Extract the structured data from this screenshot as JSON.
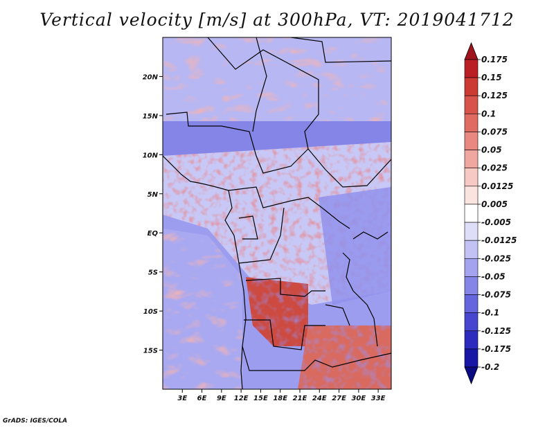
{
  "title": "Vertical velocity [m/s] at 300hPa, VT: 2019041712",
  "credit": "GrADS: IGES/COLA",
  "map": {
    "lon_range": [
      0,
      35
    ],
    "lat_range": [
      -20,
      25
    ],
    "lon_ticks": [
      {
        "value": 3,
        "label": "3E"
      },
      {
        "value": 6,
        "label": "6E"
      },
      {
        "value": 9,
        "label": "9E"
      },
      {
        "value": 12,
        "label": "12E"
      },
      {
        "value": 15,
        "label": "15E"
      },
      {
        "value": 18,
        "label": "18E"
      },
      {
        "value": 21,
        "label": "21E"
      },
      {
        "value": 24,
        "label": "24E"
      },
      {
        "value": 27,
        "label": "27E"
      },
      {
        "value": 30,
        "label": "30E"
      },
      {
        "value": 33,
        "label": "33E"
      }
    ],
    "lat_ticks": [
      {
        "value": 20,
        "label": "20N"
      },
      {
        "value": 15,
        "label": "15N"
      },
      {
        "value": 10,
        "label": "10N"
      },
      {
        "value": 5,
        "label": "5N"
      },
      {
        "value": 0,
        "label": "EQ"
      },
      {
        "value": -5,
        "label": "5S"
      },
      {
        "value": -10,
        "label": "10S"
      },
      {
        "value": -15,
        "label": "15S"
      }
    ]
  },
  "colorbar": {
    "labels": [
      "0.175",
      "0.15",
      "0.125",
      "0.1",
      "0.075",
      "0.05",
      "0.025",
      "0.0125",
      "0.005",
      "-0.005",
      "-0.0125",
      "-0.025",
      "-0.05",
      "-0.075",
      "-0.1",
      "-0.125",
      "-0.175",
      "-0.2"
    ],
    "colors": [
      "#a0141e",
      "#bb1f26",
      "#cc3a34",
      "#d8534b",
      "#e06b62",
      "#e88880",
      "#f0a7a0",
      "#f7c9c4",
      "#fbe3df",
      "#ffffff",
      "#dedef9",
      "#c2c2f5",
      "#a3a3ef",
      "#8585e8",
      "#6565de",
      "#4646d0",
      "#2b2bbd",
      "#1717a6",
      "#0a0a82"
    ]
  },
  "regions": [
    {
      "name": "sahara-north",
      "tone": "mixed-red-blue"
    },
    {
      "name": "sahel",
      "tone": "blue"
    },
    {
      "name": "congo-basin",
      "tone": "speckled-red-blue"
    },
    {
      "name": "atlantic",
      "tone": "blue"
    },
    {
      "name": "angola-zambia",
      "tone": "red"
    }
  ]
}
